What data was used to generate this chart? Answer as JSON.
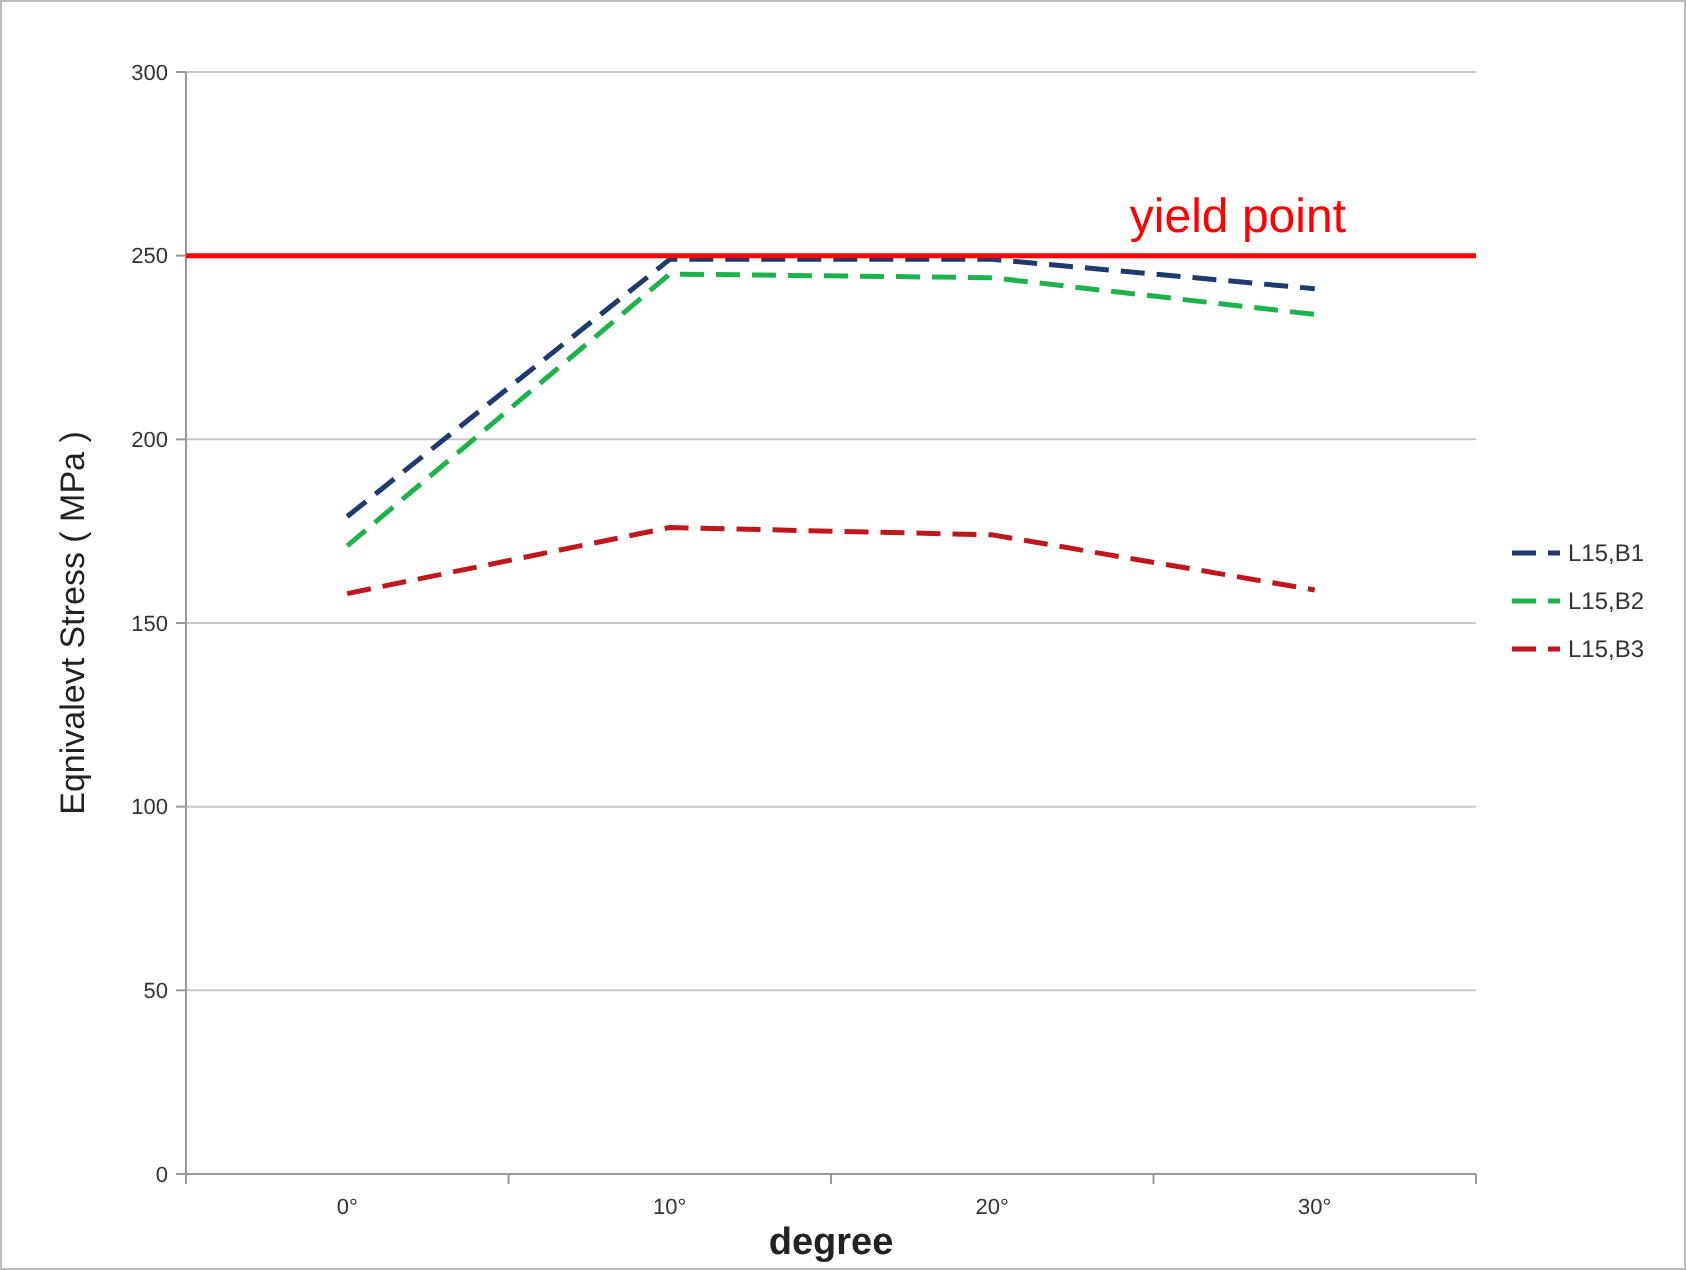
{
  "chart_data": {
    "type": "line",
    "xlabel": "degree",
    "ylabel": "Eqnivalevt Stress ( MPa )",
    "categories": [
      "0°",
      "10°",
      "20°",
      "30°"
    ],
    "series": [
      {
        "name": "L15,B1",
        "color": "#1f3a6e",
        "values": [
          179,
          249,
          249,
          241
        ]
      },
      {
        "name": "L15,B2",
        "color": "#1db34a",
        "values": [
          171,
          245,
          244,
          234
        ]
      },
      {
        "name": "L15,B3",
        "color": "#c0171c",
        "values": [
          158,
          176,
          174,
          159
        ]
      }
    ],
    "ylim": [
      0,
      300
    ],
    "yticks": [
      0,
      50,
      100,
      150,
      200,
      250,
      300
    ],
    "grid": "y",
    "legend": "right",
    "marker": "none",
    "line_style": "dashed",
    "ref_lines": [
      {
        "axis": "y",
        "value": 250,
        "label": "yield point",
        "color": "#ff0000"
      }
    ]
  }
}
